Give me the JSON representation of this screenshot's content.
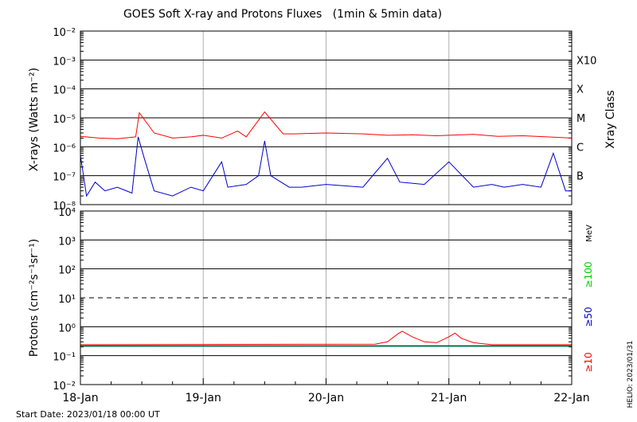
{
  "title": "GOES Soft X-ray and Protons Fluxes   (1min & 5min data)",
  "footer": {
    "start_date": "Start Date: 2023/01/18 00:00 UT",
    "stamp": "HELIO: 2023/01/31"
  },
  "colors": {
    "xray_long": "#ff0000",
    "xray_short": "#0000cc",
    "p10": "#ff0000",
    "p50": "#0000cc",
    "p100": "#00cc00",
    "grid": "#000000",
    "day_lines": "#b0b0b0"
  },
  "chart_data": [
    {
      "type": "line",
      "panel": "xray",
      "ylabel": "X-rays (Watts m⁻²)",
      "y_scale": "log",
      "ylim": [
        1e-08,
        0.01
      ],
      "y_ticks": [
        "10⁻⁸",
        "10⁻⁷",
        "10⁻⁶",
        "10⁻⁵",
        "10⁻⁴",
        "10⁻³",
        "10⁻²"
      ],
      "right_axis_label": "Xray Class",
      "classes": [
        {
          "label": "B",
          "value": 1e-07
        },
        {
          "label": "C",
          "value": 1e-06
        },
        {
          "label": "M",
          "value": 1e-05
        },
        {
          "label": "X",
          "value": 0.0001
        },
        {
          "label": "X10",
          "value": 0.001
        }
      ],
      "x_unit": "days since 18-Jan 00:00 UT",
      "series": [
        {
          "id": "long",
          "color": "#ff0000",
          "x": [
            0,
            0.15,
            0.3,
            0.45,
            0.48,
            0.6,
            0.75,
            0.9,
            1.0,
            1.15,
            1.28,
            1.35,
            1.5,
            1.65,
            1.75,
            2.0,
            2.3,
            2.5,
            2.7,
            2.9,
            3.0,
            3.2,
            3.4,
            3.6,
            3.8,
            4.0
          ],
          "y": [
            2.3e-06,
            2e-06,
            1.9e-06,
            2.2e-06,
            1.5e-05,
            3e-06,
            2e-06,
            2.2e-06,
            2.5e-06,
            2e-06,
            3.5e-06,
            2.2e-06,
            1.6e-05,
            2.8e-06,
            2.8e-06,
            3e-06,
            2.8e-06,
            2.5e-06,
            2.6e-06,
            2.4e-06,
            2.5e-06,
            2.7e-06,
            2.3e-06,
            2.4e-06,
            2.2e-06,
            2e-06
          ]
        },
        {
          "id": "short",
          "color": "#0000cc",
          "x": [
            0,
            0.05,
            0.12,
            0.2,
            0.3,
            0.42,
            0.47,
            0.52,
            0.6,
            0.75,
            0.9,
            1.0,
            1.15,
            1.2,
            1.35,
            1.45,
            1.5,
            1.55,
            1.7,
            1.8,
            2.0,
            2.3,
            2.5,
            2.6,
            2.8,
            3.0,
            3.2,
            3.35,
            3.45,
            3.6,
            3.75,
            3.85,
            3.95,
            4.0
          ],
          "y": [
            5e-07,
            2e-08,
            6e-08,
            3e-08,
            4e-08,
            2.5e-08,
            2.2e-06,
            4e-07,
            3e-08,
            2e-08,
            4e-08,
            3e-08,
            3e-07,
            4e-08,
            5e-08,
            1e-07,
            1.6e-06,
            1e-07,
            4e-08,
            4e-08,
            5e-08,
            4e-08,
            4e-07,
            6e-08,
            5e-08,
            3e-07,
            4e-08,
            5e-08,
            4e-08,
            5e-08,
            4e-08,
            6e-07,
            3e-08,
            3e-08
          ]
        }
      ]
    },
    {
      "type": "line",
      "panel": "protons",
      "ylabel": "Protons (cm⁻²s⁻¹sr⁻¹)",
      "y_scale": "log",
      "ylim": [
        0.01,
        10000
      ],
      "y_ticks": [
        "10⁻²",
        "10⁻¹",
        "10⁰",
        "10¹",
        "10²",
        "10³",
        "10⁴"
      ],
      "threshold": 10,
      "unit_label": "MeV",
      "x_ticks": [
        "18-Jan",
        "19-Jan",
        "20-Jan",
        "21-Jan",
        "22-Jan"
      ],
      "series": [
        {
          "name": "≥10",
          "color": "#ff0000",
          "x": [
            0,
            2.4,
            2.5,
            2.58,
            2.62,
            2.7,
            2.8,
            2.9,
            3.0,
            3.05,
            3.1,
            3.2,
            3.35,
            4.0
          ],
          "y": [
            0.24,
            0.25,
            0.3,
            0.55,
            0.7,
            0.45,
            0.3,
            0.28,
            0.45,
            0.6,
            0.4,
            0.28,
            0.24,
            0.24
          ]
        },
        {
          "name": "≥50",
          "color": "#0000cc",
          "x": [
            0,
            4.0
          ],
          "y": [
            0.22,
            0.22
          ]
        },
        {
          "name": "≥100",
          "color": "#00cc00",
          "x": [
            0,
            4.0
          ],
          "y": [
            0.21,
            0.21
          ]
        }
      ]
    }
  ]
}
